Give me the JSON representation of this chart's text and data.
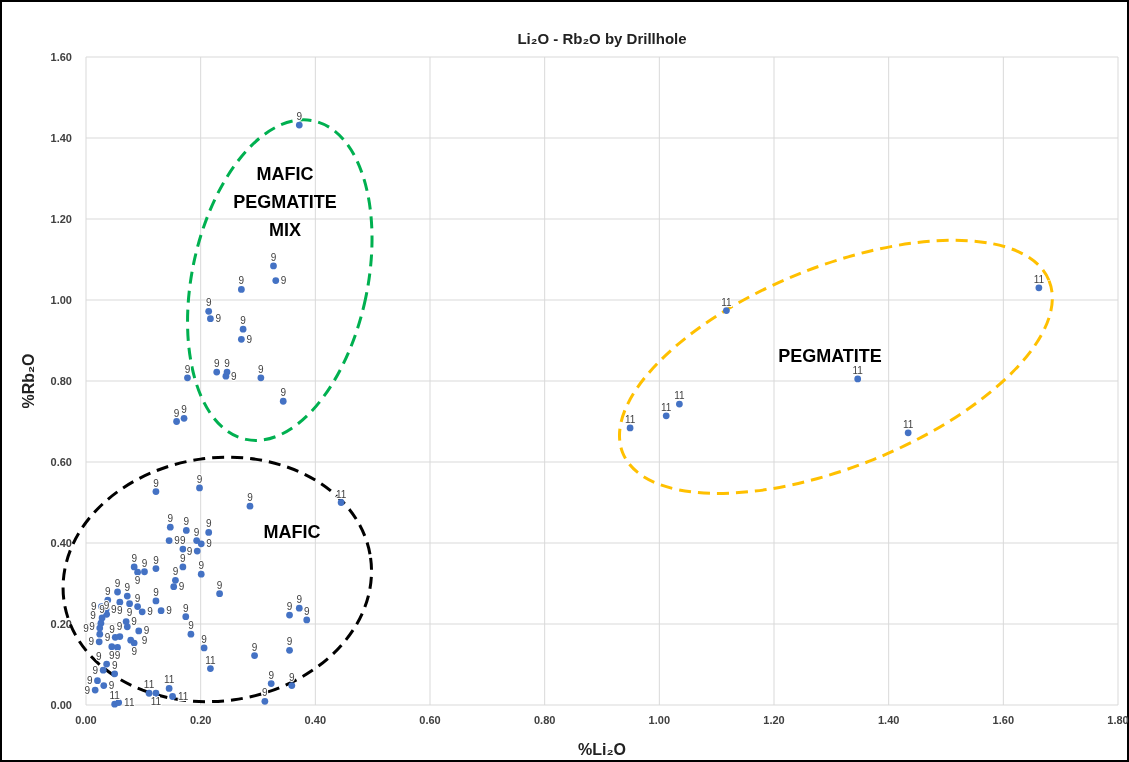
{
  "chart_data": {
    "type": "scatter",
    "title": "Li₂O - Rb₂O by Drillhole",
    "xlabel": "%Li₂O",
    "ylabel": "%Rb₂O",
    "xlim": [
      0,
      1.8
    ],
    "xticks": [
      {
        "value": 0,
        "label": "0.00"
      },
      {
        "value": 0.2,
        "label": "0.20"
      },
      {
        "value": 0.4,
        "label": "0.40"
      },
      {
        "value": 0.6,
        "label": "0.60"
      },
      {
        "value": 0.8,
        "label": "0.80"
      },
      {
        "value": 1,
        "label": "1.00"
      },
      {
        "value": 1.2,
        "label": "1.20"
      },
      {
        "value": 1.4,
        "label": "1.40"
      },
      {
        "value": 1.6,
        "label": "1.60"
      },
      {
        "value": 1.8,
        "label": "1.80"
      }
    ],
    "ylim": [
      0,
      1.6
    ],
    "yticks": [
      {
        "value": 0,
        "label": "0.00"
      },
      {
        "value": 0.2,
        "label": "0.20"
      },
      {
        "value": 0.4,
        "label": "0.40"
      },
      {
        "value": 0.6,
        "label": "0.60"
      },
      {
        "value": 0.8,
        "label": "0.80"
      },
      {
        "value": 1,
        "label": "1.00"
      },
      {
        "value": 1.2,
        "label": "1.20"
      },
      {
        "value": 1.4,
        "label": "1.40"
      },
      {
        "value": 1.6,
        "label": "1.60"
      }
    ],
    "grid": true,
    "marker": "circle",
    "annotations": [
      "MAFIC PEGMATITE MIX",
      "PEGMATITE",
      "MAFIC",
      {
        "text": "9",
        "x": 0.372,
        "y": 1.432
      },
      {
        "text": "9",
        "x": 0.327,
        "y": 1.084
      },
      {
        "text": "9",
        "x": 0.331,
        "y": 1.048
      },
      {
        "text": "9",
        "x": 0.271,
        "y": 1.026
      },
      {
        "text": "9",
        "x": 0.214,
        "y": 0.972
      },
      {
        "text": "9",
        "x": 0.217,
        "y": 0.954
      },
      {
        "text": "9",
        "x": 0.274,
        "y": 0.928
      },
      {
        "text": "9",
        "x": 0.271,
        "y": 0.903
      },
      {
        "text": "9",
        "x": 0.228,
        "y": 0.822
      },
      {
        "text": "9",
        "x": 0.246,
        "y": 0.822
      },
      {
        "text": "9",
        "x": 0.244,
        "y": 0.812
      },
      {
        "text": "9",
        "x": 0.177,
        "y": 0.808
      },
      {
        "text": "9",
        "x": 0.305,
        "y": 0.808
      },
      {
        "text": "9",
        "x": 0.344,
        "y": 0.75
      },
      {
        "text": "9",
        "x": 0.158,
        "y": 0.7
      },
      {
        "text": "9",
        "x": 0.171,
        "y": 0.708
      },
      {
        "text": "11",
        "x": 1.662,
        "y": 1.03
      },
      {
        "text": "11",
        "x": 1.117,
        "y": 0.974
      },
      {
        "text": "11",
        "x": 1.346,
        "y": 0.805
      },
      {
        "text": "11",
        "x": 1.035,
        "y": 0.743
      },
      {
        "text": "11",
        "x": 1.012,
        "y": 0.714
      },
      {
        "text": "11",
        "x": 0.949,
        "y": 0.684
      },
      {
        "text": "11",
        "x": 1.434,
        "y": 0.672
      },
      {
        "text": "9",
        "x": 0.122,
        "y": 0.527
      },
      {
        "text": "9",
        "x": 0.198,
        "y": 0.536
      },
      {
        "text": "9",
        "x": 0.286,
        "y": 0.491
      },
      {
        "text": "11",
        "x": 0.445,
        "y": 0.5
      },
      {
        "text": "9",
        "x": 0.147,
        "y": 0.439
      },
      {
        "text": "9",
        "x": 0.145,
        "y": 0.406
      },
      {
        "text": "9",
        "x": 0.175,
        "y": 0.431
      },
      {
        "text": "9",
        "x": 0.214,
        "y": 0.426
      },
      {
        "text": "9",
        "x": 0.193,
        "y": 0.406
      },
      {
        "text": "9",
        "x": 0.201,
        "y": 0.398
      },
      {
        "text": "9",
        "x": 0.169,
        "y": 0.385
      },
      {
        "text": "9",
        "x": 0.194,
        "y": 0.38
      },
      {
        "text": "9",
        "x": 0.084,
        "y": 0.341
      },
      {
        "text": "9",
        "x": 0.09,
        "y": 0.328
      },
      {
        "text": "9",
        "x": 0.102,
        "y": 0.329
      },
      {
        "text": "9",
        "x": 0.122,
        "y": 0.337
      },
      {
        "text": "9",
        "x": 0.169,
        "y": 0.341
      },
      {
        "text": "9",
        "x": 0.201,
        "y": 0.323
      },
      {
        "text": "9",
        "x": 0.156,
        "y": 0.308
      },
      {
        "text": "9",
        "x": 0.153,
        "y": 0.292
      },
      {
        "text": "9",
        "x": 0.233,
        "y": 0.275
      },
      {
        "text": "9",
        "x": 0.055,
        "y": 0.279
      },
      {
        "text": "9",
        "x": 0.059,
        "y": 0.254
      },
      {
        "text": "9",
        "x": 0.072,
        "y": 0.269
      },
      {
        "text": "9",
        "x": 0.076,
        "y": 0.25
      },
      {
        "text": "9",
        "x": 0.122,
        "y": 0.257
      },
      {
        "text": "9",
        "x": 0.131,
        "y": 0.233
      },
      {
        "text": "9",
        "x": 0.09,
        "y": 0.243
      },
      {
        "text": "9",
        "x": 0.098,
        "y": 0.23
      },
      {
        "text": "9",
        "x": 0.174,
        "y": 0.218
      },
      {
        "text": "9",
        "x": 0.07,
        "y": 0.206
      },
      {
        "text": "9",
        "x": 0.072,
        "y": 0.193
      },
      {
        "text": "9",
        "x": 0.092,
        "y": 0.183
      },
      {
        "text": "9",
        "x": 0.059,
        "y": 0.169
      },
      {
        "text": "9",
        "x": 0.183,
        "y": 0.175
      },
      {
        "text": "9",
        "x": 0.078,
        "y": 0.16
      },
      {
        "text": "9",
        "x": 0.084,
        "y": 0.153
      },
      {
        "text": "9",
        "x": 0.045,
        "y": 0.144
      },
      {
        "text": "9",
        "x": 0.055,
        "y": 0.142
      },
      {
        "text": "9",
        "x": 0.206,
        "y": 0.141
      },
      {
        "text": "11",
        "x": 0.217,
        "y": 0.09
      },
      {
        "text": "9",
        "x": 0.294,
        "y": 0.122
      },
      {
        "text": "9",
        "x": 0.355,
        "y": 0.222
      },
      {
        "text": "9",
        "x": 0.372,
        "y": 0.239
      },
      {
        "text": "9",
        "x": 0.385,
        "y": 0.21
      },
      {
        "text": "9",
        "x": 0.355,
        "y": 0.135
      },
      {
        "text": "9",
        "x": 0.323,
        "y": 0.053
      },
      {
        "text": "9",
        "x": 0.359,
        "y": 0.048
      },
      {
        "text": "9",
        "x": 0.312,
        "y": 0.009
      },
      {
        "text": "9",
        "x": 0.05,
        "y": 0.077
      },
      {
        "text": "9",
        "x": 0.031,
        "y": 0.048
      },
      {
        "text": "11",
        "x": 0.11,
        "y": 0.029
      },
      {
        "text": "11",
        "x": 0.122,
        "y": 0.029
      },
      {
        "text": "11",
        "x": 0.145,
        "y": 0.041
      },
      {
        "text": "11",
        "x": 0.151,
        "y": 0.021
      },
      {
        "text": "11",
        "x": 0.05,
        "y": 0.002
      },
      {
        "text": "11",
        "x": 0.057,
        "y": 0.006
      },
      {
        "text": "9",
        "x": 0.016,
        "y": 0.037
      },
      {
        "text": "9",
        "x": 0.02,
        "y": 0.06
      },
      {
        "text": "9",
        "x": 0.036,
        "y": 0.101
      },
      {
        "text": "9",
        "x": 0.03,
        "y": 0.086
      },
      {
        "text": "9",
        "x": 0.023,
        "y": 0.156
      },
      {
        "text": "9",
        "x": 0.024,
        "y": 0.175
      },
      {
        "text": "9",
        "x": 0.026,
        "y": 0.202
      },
      {
        "text": "9",
        "x": 0.036,
        "y": 0.224
      },
      {
        "text": "9",
        "x": 0.035,
        "y": 0.236
      },
      {
        "text": "9",
        "x": 0.027,
        "y": 0.243
      },
      {
        "text": "9",
        "x": 0.038,
        "y": 0.259
      },
      {
        "text": "9",
        "x": 0.051,
        "y": 0.167
      },
      {
        "text": "9",
        "x": 0.024,
        "y": 0.19
      },
      {
        "text": "9",
        "x": 0.028,
        "y": 0.215
      }
    ],
    "series": [
      {
        "color": "#4472c4",
        "x": [
          0.372,
          0.327,
          0.331,
          0.271,
          0.214,
          0.217,
          0.274,
          0.271,
          0.228,
          0.246,
          0.244,
          0.177,
          0.305,
          0.344,
          0.158,
          0.171,
          1.662,
          1.117,
          1.346,
          1.035,
          1.012,
          0.949,
          1.434,
          0.122,
          0.198,
          0.286,
          0.445,
          0.147,
          0.145,
          0.175,
          0.214,
          0.193,
          0.201,
          0.169,
          0.194,
          0.084,
          0.09,
          0.102,
          0.122,
          0.169,
          0.201,
          0.156,
          0.153,
          0.233,
          0.055,
          0.059,
          0.072,
          0.076,
          0.122,
          0.131,
          0.09,
          0.098,
          0.174,
          0.07,
          0.072,
          0.092,
          0.059,
          0.183,
          0.078,
          0.084,
          0.045,
          0.055,
          0.206,
          0.217,
          0.294,
          0.355,
          0.372,
          0.385,
          0.355,
          0.323,
          0.359,
          0.312,
          0.05,
          0.031,
          0.11,
          0.122,
          0.145,
          0.151,
          0.05,
          0.057,
          0.016,
          0.02,
          0.036,
          0.03,
          0.023,
          0.024,
          0.026,
          0.036,
          0.035,
          0.027,
          0.038,
          0.051,
          0.024,
          0.028
        ],
        "values": [
          1.432,
          1.084,
          1.048,
          1.026,
          0.972,
          0.954,
          0.928,
          0.903,
          0.822,
          0.822,
          0.812,
          0.808,
          0.808,
          0.75,
          0.7,
          0.708,
          1.03,
          0.974,
          0.805,
          0.743,
          0.714,
          0.684,
          0.672,
          0.527,
          0.536,
          0.491,
          0.5,
          0.439,
          0.406,
          0.431,
          0.426,
          0.406,
          0.398,
          0.385,
          0.38,
          0.341,
          0.328,
          0.329,
          0.337,
          0.341,
          0.323,
          0.308,
          0.292,
          0.275,
          0.279,
          0.254,
          0.269,
          0.25,
          0.257,
          0.233,
          0.243,
          0.23,
          0.218,
          0.206,
          0.193,
          0.183,
          0.169,
          0.175,
          0.16,
          0.153,
          0.144,
          0.142,
          0.141,
          0.09,
          0.122,
          0.222,
          0.239,
          0.21,
          0.135,
          0.053,
          0.048,
          0.009,
          0.077,
          0.048,
          0.029,
          0.029,
          0.041,
          0.021,
          0.002,
          0.006,
          0.037,
          0.06,
          0.101,
          0.086,
          0.156,
          0.175,
          0.202,
          0.224,
          0.236,
          0.243,
          0.259,
          0.167,
          0.19,
          0.215
        ]
      }
    ]
  }
}
